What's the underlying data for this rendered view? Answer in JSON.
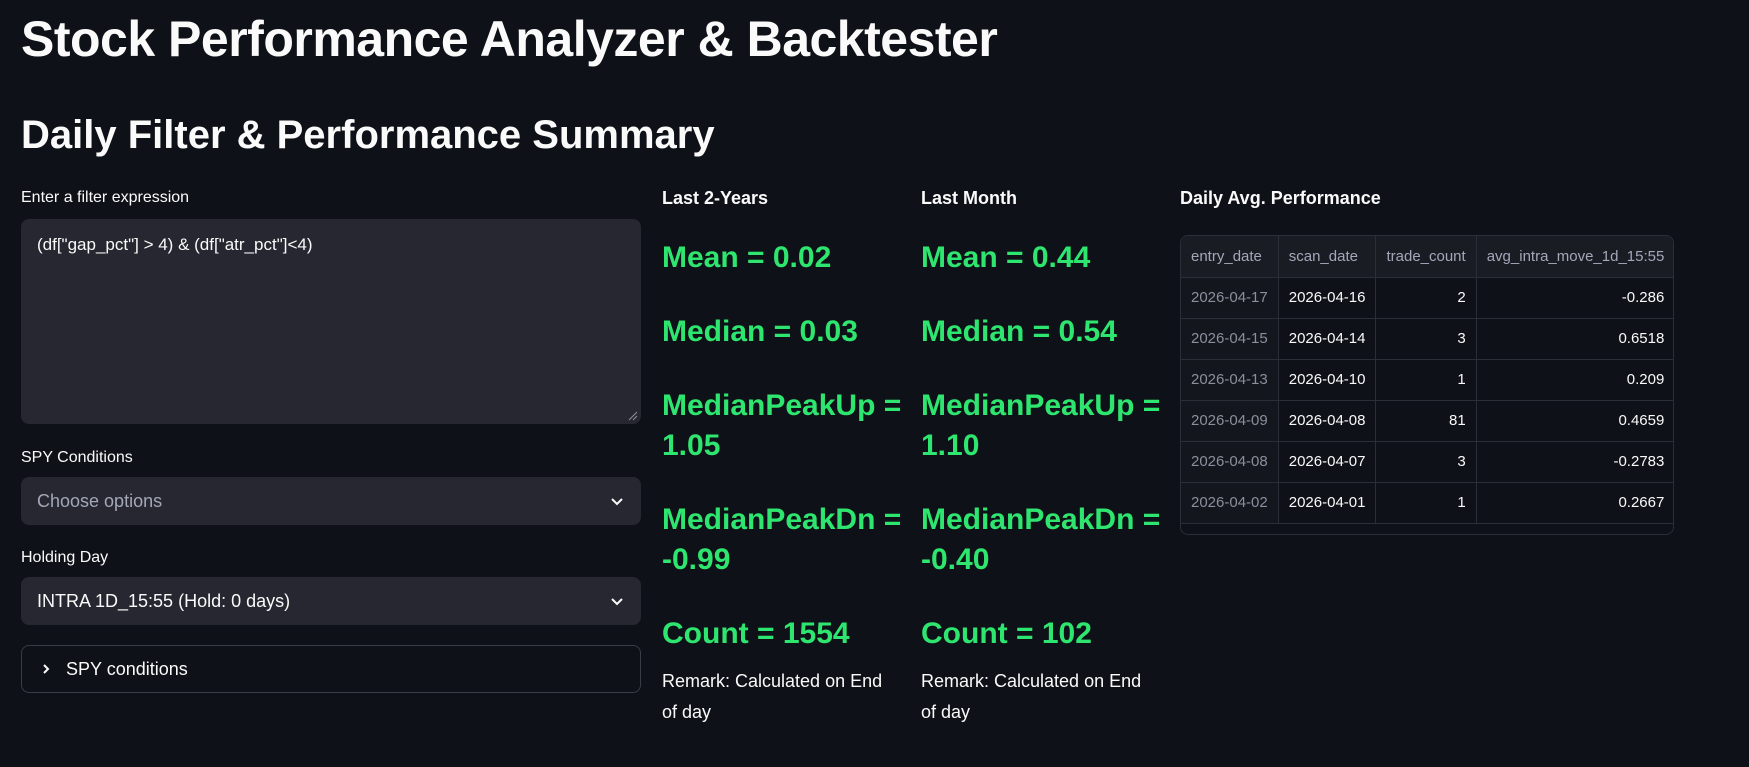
{
  "app": {
    "title": "Stock Performance Analyzer & Backtester"
  },
  "section": {
    "title": "Daily Filter & Performance Summary"
  },
  "filter": {
    "label": "Enter a filter expression",
    "value": "(df[\"gap_pct\"] > 4) & (df[\"atr_pct\"]<4)"
  },
  "spy_conditions_select": {
    "label": "SPY Conditions",
    "placeholder": "Choose options"
  },
  "holding_day": {
    "label": "Holding Day",
    "value": "INTRA 1D_15:55 (Hold: 0 days)"
  },
  "expander": {
    "label": "SPY conditions"
  },
  "last_2_years": {
    "title": "Last 2-Years",
    "mean": "Mean = 0.02",
    "median": "Median = 0.03",
    "median_peak_up": "MedianPeakUp = 1.05",
    "median_peak_dn": "MedianPeakDn = -0.99",
    "count": "Count = 1554",
    "remark": "Remark: Calculated on End of day"
  },
  "last_month": {
    "title": "Last Month",
    "mean": "Mean = 0.44",
    "median": "Median = 0.54",
    "median_peak_up": "MedianPeakUp = 1.10",
    "median_peak_dn": "MedianPeakDn = -0.40",
    "count": "Count = 102",
    "remark": "Remark: Calculated on End of day"
  },
  "daily_avg": {
    "title": "Daily Avg. Performance",
    "columns": [
      "entry_date",
      "scan_date",
      "trade_count",
      "avg_intra_move_1d_15:55"
    ],
    "rows": [
      [
        "2026-04-17",
        "2026-04-16",
        "2",
        "-0.286"
      ],
      [
        "2026-04-15",
        "2026-04-14",
        "3",
        "0.6518"
      ],
      [
        "2026-04-13",
        "2026-04-10",
        "1",
        "0.209"
      ],
      [
        "2026-04-09",
        "2026-04-08",
        "81",
        "0.4659"
      ],
      [
        "2026-04-08",
        "2026-04-07",
        "3",
        "-0.2783"
      ],
      [
        "2026-04-02",
        "2026-04-01",
        "1",
        "0.2667"
      ]
    ]
  },
  "colors": {
    "background": "#0e1117",
    "widget": "#262730",
    "metric_green": "#2ee66f",
    "text": "#fafafa"
  }
}
